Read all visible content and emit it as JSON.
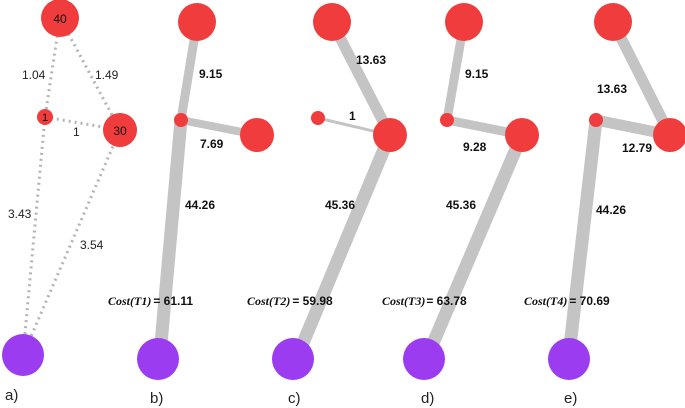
{
  "colors": {
    "node_red": "#f03c3c",
    "node_purple": "#9b3cf0",
    "edge_grey": "#c4c4c4",
    "dotted_grey": "#b4b4b4"
  },
  "panel_a": {
    "letter": "a)",
    "nodes": {
      "top": "40",
      "mid": "1",
      "right": "30"
    },
    "edges": {
      "top_mid": "1.04",
      "top_right": "1.49",
      "mid_right": "1",
      "mid_bottom": "3.43",
      "right_bottom": "3.54"
    }
  },
  "panel_b": {
    "letter": "b)",
    "edges": [
      "9.15",
      "7.69",
      "44.26"
    ],
    "cost_label": "Cost(T1)",
    "cost_value": "= 61.11"
  },
  "panel_c": {
    "letter": "c)",
    "edges": [
      "13.63",
      "1",
      "45.36"
    ],
    "cost_label": "Cost(T2)",
    "cost_value": "= 59.98"
  },
  "panel_d": {
    "letter": "d)",
    "edges": [
      "9.15",
      "9.28",
      "45.36"
    ],
    "cost_label": "Cost(T3)",
    "cost_value": "= 63.78"
  },
  "panel_e": {
    "letter": "e)",
    "edges": [
      "13.63",
      "12.79",
      "44.26"
    ],
    "cost_label": "Cost(T4)",
    "cost_value": "= 70.69"
  }
}
